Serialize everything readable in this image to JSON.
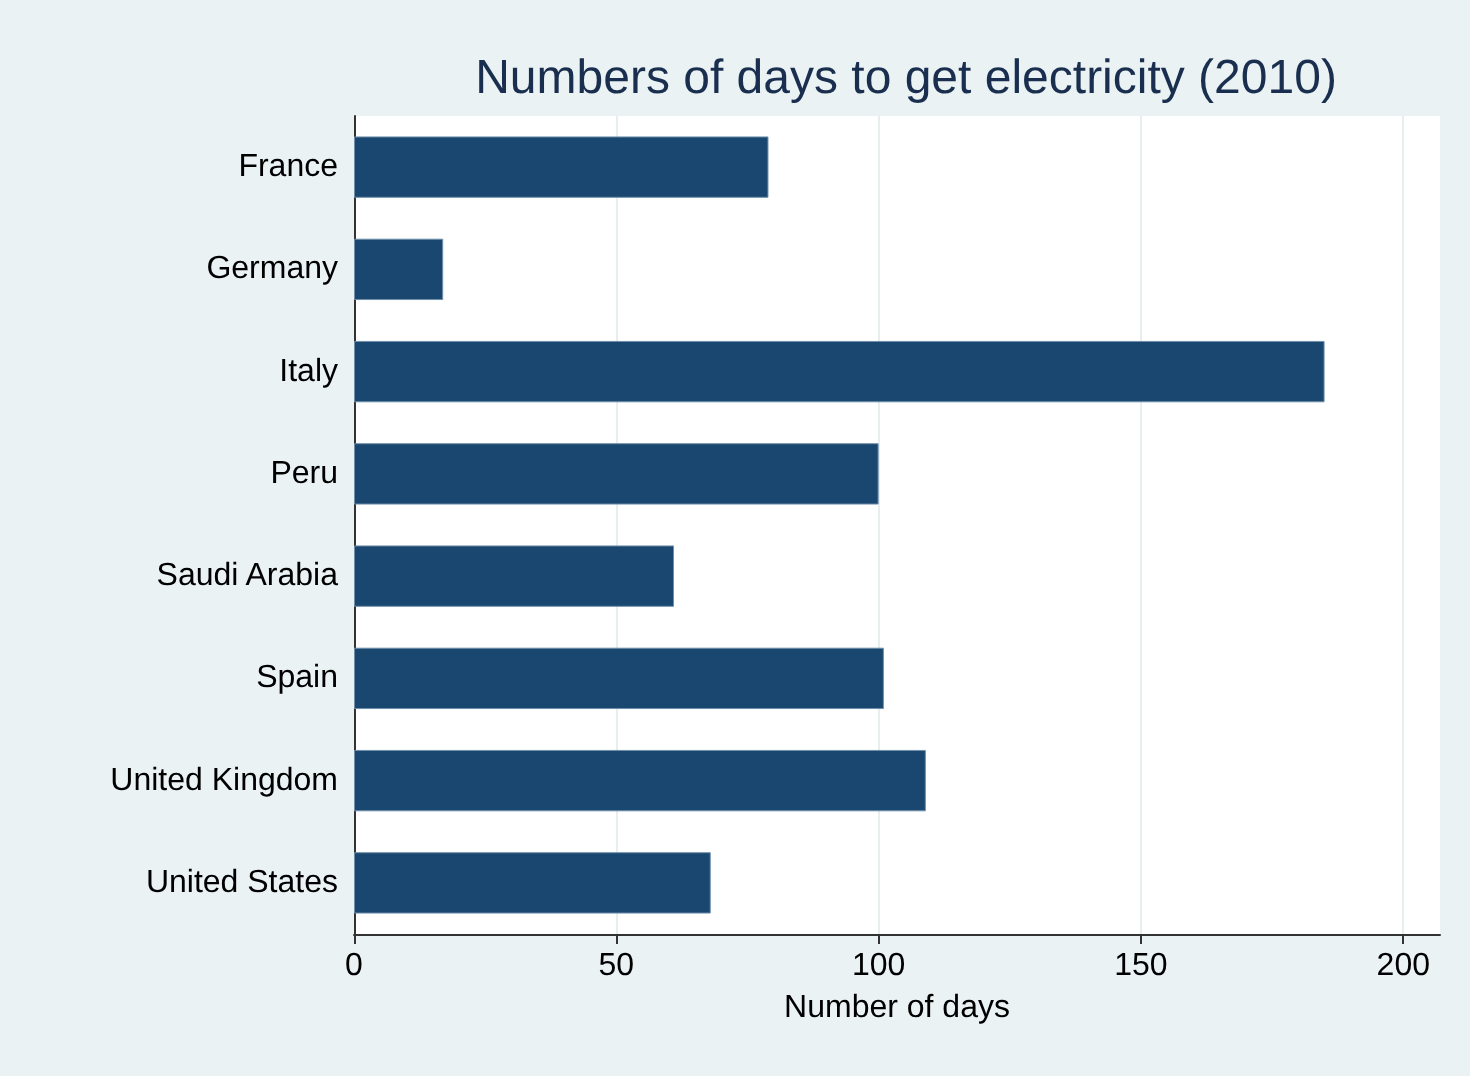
{
  "chart_data": {
    "type": "bar",
    "orientation": "horizontal",
    "title": "Numbers of days to get electricity (2010)",
    "xlabel": "Number of days",
    "categories": [
      "France",
      "Germany",
      "Italy",
      "Peru",
      "Saudi Arabia",
      "Spain",
      "United Kingdom",
      "United States"
    ],
    "values": [
      79,
      17,
      185,
      100,
      61,
      101,
      109,
      68
    ],
    "color": "#1a476f",
    "xlim": [
      0,
      207
    ],
    "xticks": [
      0,
      50,
      100,
      150,
      200
    ],
    "grid": "x"
  }
}
